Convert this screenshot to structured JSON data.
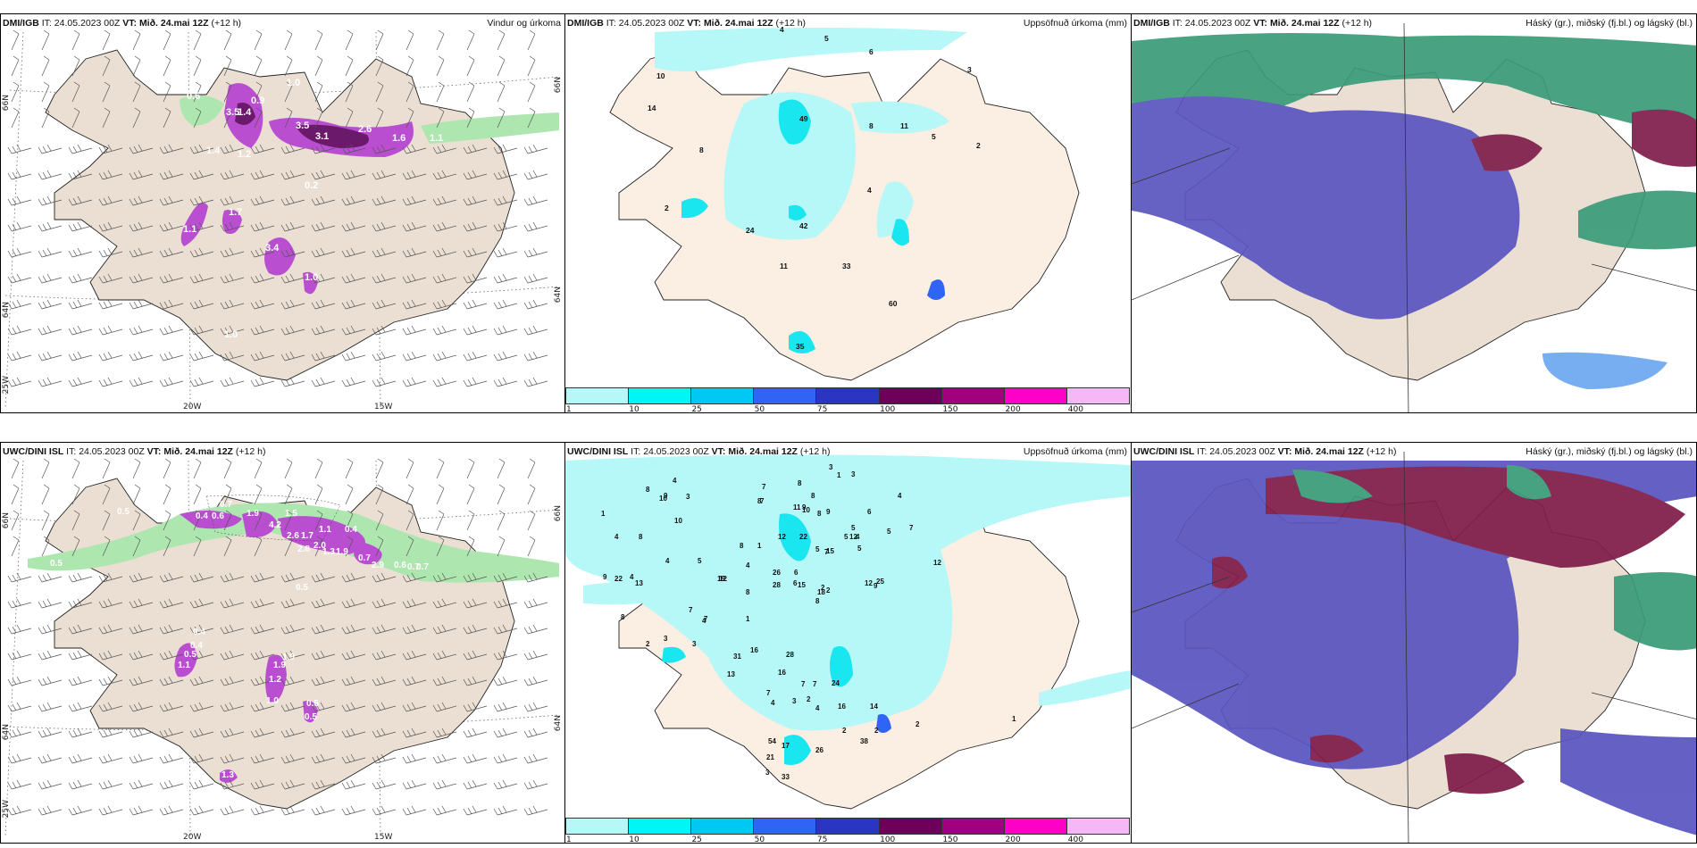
{
  "panels": [
    {
      "id": "dmi-wind",
      "model": "DMI/IGB",
      "it_label": "IT:",
      "it_value": "24.05.2023 00Z",
      "vt_label": "VT:",
      "vt_value": "Mið. 24.mai 12Z",
      "lead": "(+12 h)",
      "title": "Vindur og úrkoma",
      "axis": {
        "lat_66": "66N",
        "lat_64": "64N",
        "lon_25": "25W",
        "lon_20": "20W",
        "lon_15": "15W"
      },
      "value_labels": [
        "1.4",
        "0.9",
        "3.5",
        "3.5",
        "3.1",
        "2.6",
        "1.6",
        "1.1",
        "1.2",
        "1.4",
        "1.7",
        "1.1",
        "0.2",
        "3.4",
        "1.0",
        "1.0",
        "0.6",
        "1.0"
      ]
    },
    {
      "id": "dmi-precip",
      "model": "DMI/IGB",
      "it_label": "IT:",
      "it_value": "24.05.2023 00Z",
      "vt_label": "VT:",
      "vt_value": "Mið. 24.mai 12Z",
      "lead": "(+12 h)",
      "title": "Uppsöfnuð úrkoma (mm)",
      "value_labels": [
        "4",
        "5",
        "6",
        "10",
        "14",
        "49",
        "8",
        "11",
        "5",
        "3",
        "2",
        "8",
        "4",
        "2",
        "24",
        "42",
        "11",
        "33",
        "60",
        "35"
      ]
    },
    {
      "id": "dmi-cloud",
      "model": "DMI/IGB",
      "it_label": "IT:",
      "it_value": "24.05.2023 00Z",
      "vt_label": "VT:",
      "vt_value": "Mið. 24.mai 12Z",
      "lead": "(+12 h)",
      "title": "Háský (gr.), miðský (fj.bl.) og lágský (bl.)"
    },
    {
      "id": "uwc-wind",
      "model": "UWC/DINI ISL",
      "it_label": "IT:",
      "it_value": "24.05.2023 00Z",
      "vt_label": "VT:",
      "vt_value": "Mið. 24.mai 12Z",
      "lead": "(+12 h)",
      "title": "",
      "axis": {
        "lat_66": "66N",
        "lat_64": "64N",
        "lon_25": "25W",
        "lon_20": "20W",
        "lon_15": "15W"
      },
      "value_labels": [
        "0.5",
        "0.7",
        "0.4",
        "0.6",
        "1.9",
        "4.2",
        "1.5",
        "2.6",
        "1.7",
        "1.1",
        "0.4",
        "0.3",
        "2.8",
        "2.0",
        "1.3",
        "1.9",
        "0.7",
        "2.9",
        "0.6",
        "0.7",
        "0.7",
        "0.5",
        "0.5",
        "0.4",
        "0.4",
        "0.5",
        "1.1",
        "1.9",
        "1.9",
        "1.2",
        "1.0",
        "0.5",
        "0.5",
        "1.3"
      ]
    },
    {
      "id": "uwc-precip",
      "model": "UWC/DINI ISL",
      "it_label": "IT:",
      "it_value": "24.05.2023 00Z",
      "vt_label": "VT:",
      "vt_value": "Mið. 24.mai 12Z",
      "lead": "(+12 h)",
      "title": "Uppsöfnuð úrkoma (mm)",
      "value_labels": [
        "3",
        "3",
        "4",
        "8",
        "10",
        "9",
        "3",
        "7",
        "8",
        "8",
        "8",
        "7",
        "9",
        "11",
        "10",
        "8",
        "9",
        "6",
        "4",
        "1",
        "4",
        "8",
        "5",
        "10",
        "5",
        "4",
        "5",
        "7",
        "8",
        "1",
        "12",
        "22",
        "15",
        "12",
        "5",
        "4",
        "4",
        "5",
        "7",
        "9",
        "22",
        "13",
        "4",
        "5",
        "19",
        "26",
        "6",
        "6",
        "25",
        "12",
        "28",
        "15",
        "2",
        "2",
        "12",
        "9",
        "18",
        "8",
        "8",
        "7",
        "7",
        "1",
        "8",
        "4",
        "12",
        "3",
        "2",
        "3",
        "16",
        "28",
        "31",
        "13",
        "16",
        "24",
        "7",
        "7",
        "7",
        "4",
        "3",
        "2",
        "4",
        "16",
        "14",
        "2",
        "2",
        "54",
        "17",
        "21",
        "26",
        "3",
        "33",
        "38",
        "2",
        "1",
        "1"
      ]
    },
    {
      "id": "uwc-cloud",
      "model": "UWC/DINI ISL",
      "it_label": "IT:",
      "it_value": "24.05.2023 00Z",
      "vt_label": "VT:",
      "vt_value": "Mið. 24.mai 12Z",
      "lead": "(+12 h)",
      "title": "Háský (gr.), miðský (fj.bl.) og lágský (bl.)"
    }
  ],
  "colorbar": {
    "ticks": [
      "1",
      "10",
      "25",
      "50",
      "75",
      "100",
      "150",
      "200",
      "400"
    ],
    "colors": [
      "#b6f7f7",
      "#00f5f5",
      "#00c8f5",
      "#2f64f5",
      "#2a35c4",
      "#6e0059",
      "#a1007f",
      "#ff00c8",
      "#f5b7f5"
    ]
  },
  "colors": {
    "land": "#eadfd2",
    "land_precip": "#fbeee2",
    "precip_light": "#b6f7f7",
    "precip_mid": "#19e6ee",
    "wind_purple": "#b94fd0",
    "wind_dark": "#6b1a6b",
    "wind_green": "#aee6b0",
    "cloud_low": "#5a55c0",
    "cloud_mid": "#7f1d4a",
    "cloud_high": "#3a9b78"
  }
}
